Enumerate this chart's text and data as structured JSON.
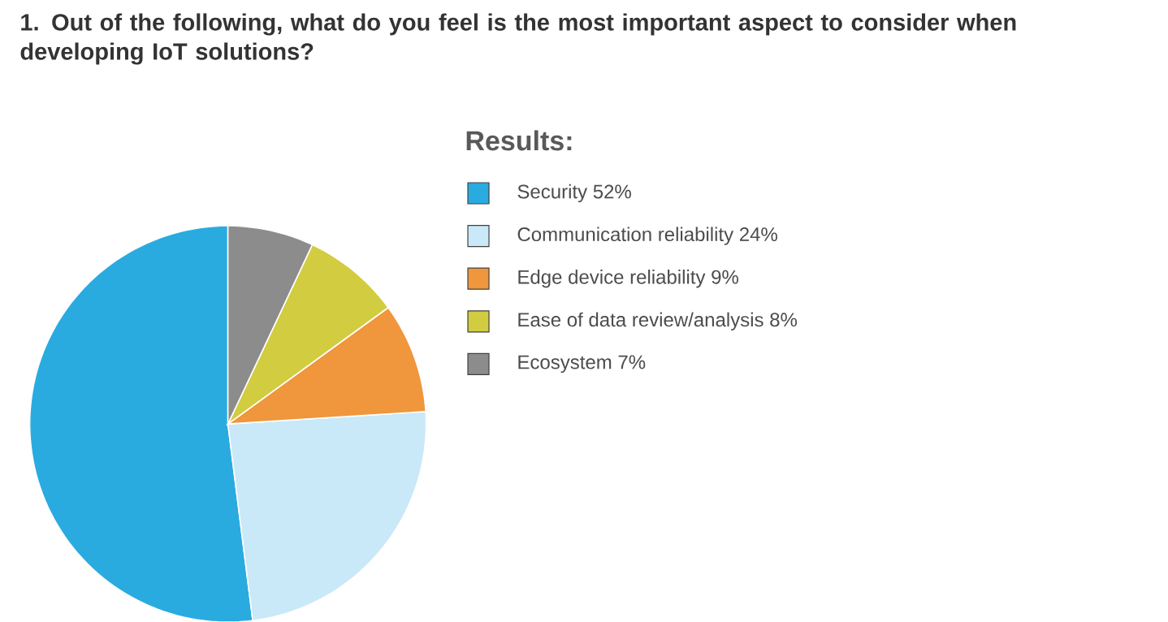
{
  "chart_data": {
    "type": "pie",
    "title": "1. Out of the following, what do you feel is the most important aspect to consider when developing IoT solutions?",
    "legend_title": "Results:",
    "legend": "right",
    "categories": [
      "Security 52%",
      "Communication reliability 24%",
      "Edge device reliability 9%",
      "Ease of data review/analysis 8%",
      "Ecosystem 7%"
    ],
    "values": [
      52,
      24,
      9,
      8,
      7
    ],
    "colors": [
      "#29abe0",
      "#c9e8f8",
      "#f0963c",
      "#d2cc40",
      "#8c8c8c"
    ]
  }
}
